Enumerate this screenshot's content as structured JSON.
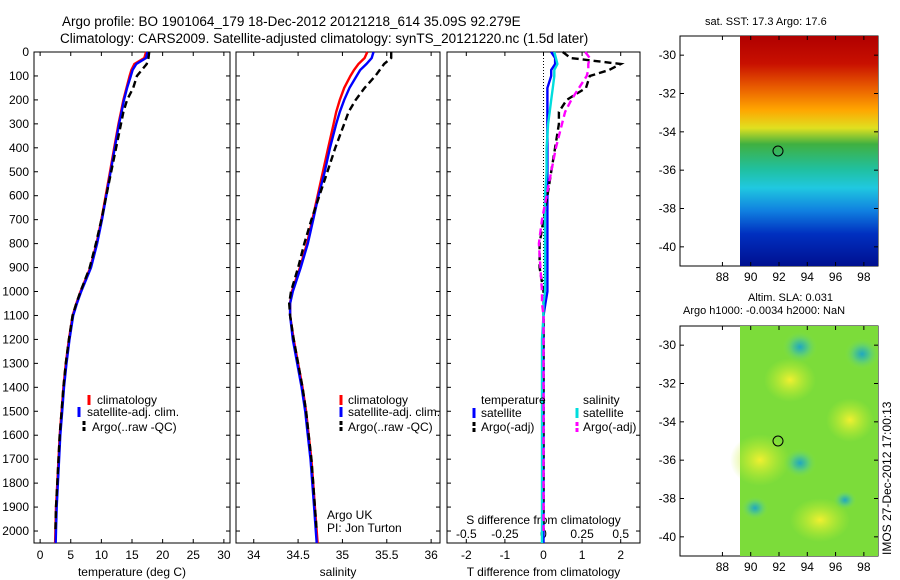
{
  "title_line1": "Argo profile: BO 1901064_179 18-Dec-2012 20121218_614 35.09S 92.279E",
  "title_line2": "Climatology: CARS2009. Satellite-adjusted climatology: synTS_20121220.nc (1.5d later)",
  "depth_ticks": [
    "0",
    "100",
    "200",
    "300",
    "400",
    "500",
    "600",
    "700",
    "800",
    "900",
    "1000",
    "1100",
    "1200",
    "1300",
    "1400",
    "1500",
    "1600",
    "1700",
    "1800",
    "1900",
    "2000"
  ],
  "panels": {
    "temperature": {
      "xlabel": "temperature (deg C)",
      "xticks": [
        "0",
        "5",
        "10",
        "15",
        "20",
        "25",
        "30"
      ],
      "legend": [
        "climatology",
        "satellite-adj. clim.",
        "Argo(..raw -QC)"
      ]
    },
    "salinity": {
      "xlabel": "salinity",
      "xticks": [
        "34",
        "34.5",
        "35",
        "35.5",
        "36"
      ],
      "legend": [
        "climatology",
        "satellite-adj. clim.",
        "Argo(..raw -QC)"
      ],
      "note1": "Argo UK",
      "note2": "PI: Jon Turton"
    },
    "difference": {
      "xlabel_bottom": "T difference from climatology",
      "xlabel_top": "S difference from climatology",
      "xticks_t": [
        "-2",
        "-1",
        "0",
        "1",
        "2"
      ],
      "xticks_s": [
        "-0.5",
        "-0.25",
        "0",
        "0.25",
        "0.5"
      ],
      "legend_temp_title": "temperature",
      "legend_sal_title": "salinity",
      "legend_temp": [
        "satellite",
        "Argo(-adj)"
      ],
      "legend_sal": [
        "satellite",
        "Argo(-adj)"
      ]
    }
  },
  "maps": {
    "sst_title": "sat. SST: 17.3  Argo: 17.6",
    "sla_title1": "Altim. SLA: 0.031",
    "sla_title2": "Argo h1000: -0.0034  h2000: NaN",
    "lat_ticks": [
      "-30",
      "-32",
      "-34",
      "-36",
      "-38",
      "-40"
    ],
    "lon_ticks": [
      "88",
      "90",
      "92",
      "94",
      "96",
      "98"
    ]
  },
  "side_label": "IMOS 27-Dec-2012 17:00:13",
  "chart_data": {
    "type": "line",
    "depth": [
      0,
      25,
      50,
      75,
      100,
      150,
      200,
      250,
      300,
      400,
      500,
      600,
      700,
      800,
      900,
      1000,
      1050,
      1100,
      1200,
      1300,
      1400,
      1500,
      1600,
      1700,
      1800,
      1900,
      2000,
      2050
    ],
    "temperature": {
      "ylabel": "depth",
      "ylim": [
        2050,
        0
      ],
      "xlim": [
        -1,
        31
      ],
      "series": [
        {
          "name": "climatology",
          "color": "#ff0000",
          "dash": "",
          "values": [
            17.3,
            17.0,
            15.4,
            14.9,
            14.6,
            14.1,
            13.6,
            13.2,
            12.8,
            12.1,
            11.4,
            10.7,
            10.0,
            9.2,
            8.2,
            6.6,
            5.9,
            5.3,
            4.7,
            4.2,
            3.8,
            3.5,
            3.2,
            3.0,
            2.8,
            2.6,
            2.5,
            2.45
          ]
        },
        {
          "name": "satellite-adj. clim.",
          "color": "#0000ff",
          "dash": "",
          "values": [
            17.5,
            17.3,
            15.7,
            15.1,
            14.8,
            14.2,
            13.7,
            13.3,
            12.9,
            12.2,
            11.5,
            10.8,
            10.1,
            9.3,
            8.3,
            6.7,
            6.0,
            5.4,
            4.8,
            4.3,
            3.9,
            3.6,
            3.3,
            3.1,
            2.9,
            2.7,
            2.6,
            2.55
          ]
        },
        {
          "name": "Argo(..raw -QC)",
          "color": "#000000",
          "dash": "7,4",
          "values": [
            17.8,
            17.7,
            17.4,
            16.6,
            15.8,
            15.2,
            14.2,
            13.6,
            13.2,
            12.4,
            11.6,
            10.8,
            10.0,
            9.1,
            8.1,
            6.6,
            5.9,
            5.3,
            4.7,
            4.2,
            3.8,
            3.5,
            3.2,
            3.0,
            2.8,
            2.6,
            2.5,
            null
          ]
        }
      ]
    },
    "salinity": {
      "ylim": [
        2050,
        0
      ],
      "xlim": [
        33.8,
        36.1
      ],
      "series": [
        {
          "name": "climatology",
          "color": "#ff0000",
          "dash": "",
          "values": [
            35.28,
            35.25,
            35.18,
            35.13,
            35.09,
            35.02,
            34.97,
            34.93,
            34.9,
            34.84,
            34.78,
            34.72,
            34.66,
            34.6,
            34.52,
            34.43,
            34.41,
            34.41,
            34.45,
            34.5,
            34.55,
            34.59,
            34.62,
            34.65,
            34.67,
            34.69,
            34.71,
            34.72
          ]
        },
        {
          "name": "satellite-adj. clim.",
          "color": "#0000ff",
          "dash": "",
          "values": [
            35.35,
            35.33,
            35.27,
            35.2,
            35.16,
            35.08,
            35.02,
            34.97,
            34.93,
            34.86,
            34.8,
            34.73,
            34.67,
            34.61,
            34.53,
            34.44,
            34.41,
            34.41,
            34.44,
            34.49,
            34.54,
            34.58,
            34.61,
            34.64,
            34.66,
            34.68,
            34.7,
            34.71
          ]
        },
        {
          "name": "Argo(..raw -QC)",
          "color": "#000000",
          "dash": "7,4",
          "values": [
            35.55,
            35.55,
            35.47,
            35.42,
            35.37,
            35.25,
            35.15,
            35.07,
            35.02,
            34.92,
            34.83,
            34.74,
            34.65,
            34.57,
            34.5,
            34.42,
            34.4,
            34.41,
            34.45,
            34.5,
            34.55,
            34.59,
            34.62,
            34.65,
            34.67,
            34.69,
            34.71,
            null
          ]
        }
      ]
    },
    "difference": {
      "ylim": [
        2050,
        0
      ],
      "xlim_t": [
        -2.5,
        2.5
      ],
      "xlim_s": [
        -0.625,
        0.625
      ],
      "series": [
        {
          "name": "temperature satellite",
          "axis": "t",
          "color": "#0000ff",
          "dash": "",
          "values": [
            0.2,
            0.3,
            0.3,
            0.2,
            0.2,
            0.1,
            0.1,
            0.1,
            0.1,
            0.1,
            0.1,
            0.1,
            0.1,
            0.1,
            0.1,
            0.1,
            0.05,
            0.0,
            0.0,
            0.0,
            0.0,
            0.0,
            0.0,
            0.0,
            0.0,
            0.0,
            0.0,
            0.0
          ]
        },
        {
          "name": "temperature Argo(-adj)",
          "axis": "t",
          "color": "#000000",
          "dash": "7,4",
          "values": [
            0.5,
            0.7,
            2.0,
            1.7,
            1.2,
            1.1,
            0.6,
            0.4,
            0.4,
            0.3,
            0.2,
            0.1,
            0.0,
            -0.1,
            -0.1,
            -0.0,
            0.0,
            0.0,
            0.0,
            0.0,
            0.0,
            0.0,
            0.0,
            0.0,
            0.0,
            0.0,
            0.0,
            null
          ]
        },
        {
          "name": "salinity satellite",
          "axis": "s",
          "color": "#00dddd",
          "dash": "",
          "values": [
            0.07,
            0.08,
            0.09,
            0.07,
            0.07,
            0.06,
            0.05,
            0.04,
            0.03,
            0.02,
            0.02,
            0.01,
            0.01,
            0.01,
            0.01,
            0.01,
            0.0,
            0.0,
            -0.01,
            -0.01,
            -0.01,
            -0.01,
            -0.01,
            -0.01,
            -0.01,
            -0.01,
            -0.01,
            -0.01
          ]
        },
        {
          "name": "salinity Argo(-adj)",
          "axis": "s",
          "color": "#ff00ff",
          "dash": "7,4",
          "values": [
            0.27,
            0.3,
            0.29,
            0.29,
            0.28,
            0.23,
            0.18,
            0.14,
            0.12,
            0.08,
            0.05,
            0.02,
            -0.01,
            -0.03,
            -0.02,
            -0.01,
            -0.01,
            0.0,
            0.0,
            0.0,
            0.0,
            0.0,
            0.0,
            0.0,
            0.0,
            0.0,
            0.0,
            null
          ]
        }
      ]
    }
  }
}
